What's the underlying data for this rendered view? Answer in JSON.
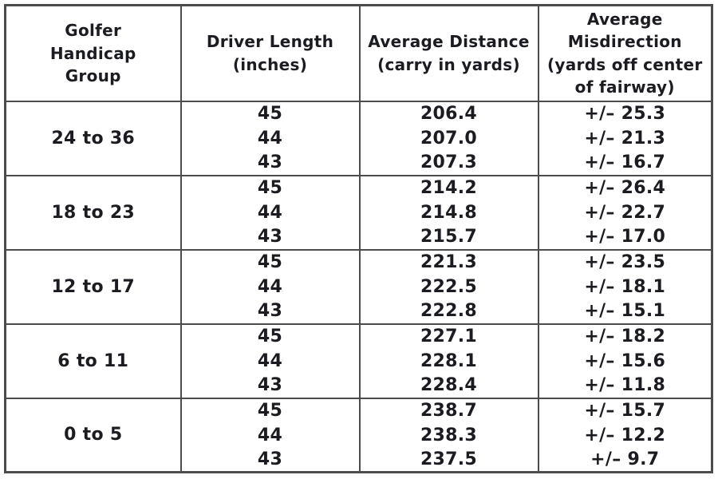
{
  "page": {
    "background_color": "#ffffff",
    "text_color": "#1b1b22",
    "border_color": "#4c4c4c"
  },
  "chart_data": {
    "type": "table",
    "columns": [
      "Golfer Handicap Group",
      "Driver Length (inches)",
      "Average Distance (carry in yards)",
      "Average Misdirection (yards off center of fairway)"
    ],
    "header_lines": [
      "Golfer\nHandicap\nGroup",
      "Driver Length\n(inches)",
      "Average Distance\n(carry in yards)",
      "Average\nMisdirection\n(yards off center\nof fairway)"
    ],
    "groups": [
      {
        "handicap_group": "24 to 36",
        "rows": [
          {
            "driver_length": "45",
            "avg_distance": "206.4",
            "avg_misdirection": "+/– 25.3"
          },
          {
            "driver_length": "44",
            "avg_distance": "207.0",
            "avg_misdirection": "+/– 21.3"
          },
          {
            "driver_length": "43",
            "avg_distance": "207.3",
            "avg_misdirection": "+/– 16.7"
          }
        ]
      },
      {
        "handicap_group": "18 to 23",
        "rows": [
          {
            "driver_length": "45",
            "avg_distance": "214.2",
            "avg_misdirection": "+/– 26.4"
          },
          {
            "driver_length": "44",
            "avg_distance": "214.8",
            "avg_misdirection": "+/– 22.7"
          },
          {
            "driver_length": "43",
            "avg_distance": "215.7",
            "avg_misdirection": "+/– 17.0"
          }
        ]
      },
      {
        "handicap_group": "12 to 17",
        "rows": [
          {
            "driver_length": "45",
            "avg_distance": "221.3",
            "avg_misdirection": "+/– 23.5"
          },
          {
            "driver_length": "44",
            "avg_distance": "222.5",
            "avg_misdirection": "+/– 18.1"
          },
          {
            "driver_length": "43",
            "avg_distance": "222.8",
            "avg_misdirection": "+/– 15.1"
          }
        ]
      },
      {
        "handicap_group": "6 to 11",
        "rows": [
          {
            "driver_length": "45",
            "avg_distance": "227.1",
            "avg_misdirection": "+/– 18.2"
          },
          {
            "driver_length": "44",
            "avg_distance": "228.1",
            "avg_misdirection": "+/– 15.6"
          },
          {
            "driver_length": "43",
            "avg_distance": "228.4",
            "avg_misdirection": "+/– 11.8"
          }
        ]
      },
      {
        "handicap_group": "0 to 5",
        "rows": [
          {
            "driver_length": "45",
            "avg_distance": "238.7",
            "avg_misdirection": "+/– 15.7"
          },
          {
            "driver_length": "44",
            "avg_distance": "238.3",
            "avg_misdirection": "+/– 12.2"
          },
          {
            "driver_length": "43",
            "avg_distance": "237.5",
            "avg_misdirection": "+/– 9.7"
          }
        ]
      }
    ]
  }
}
